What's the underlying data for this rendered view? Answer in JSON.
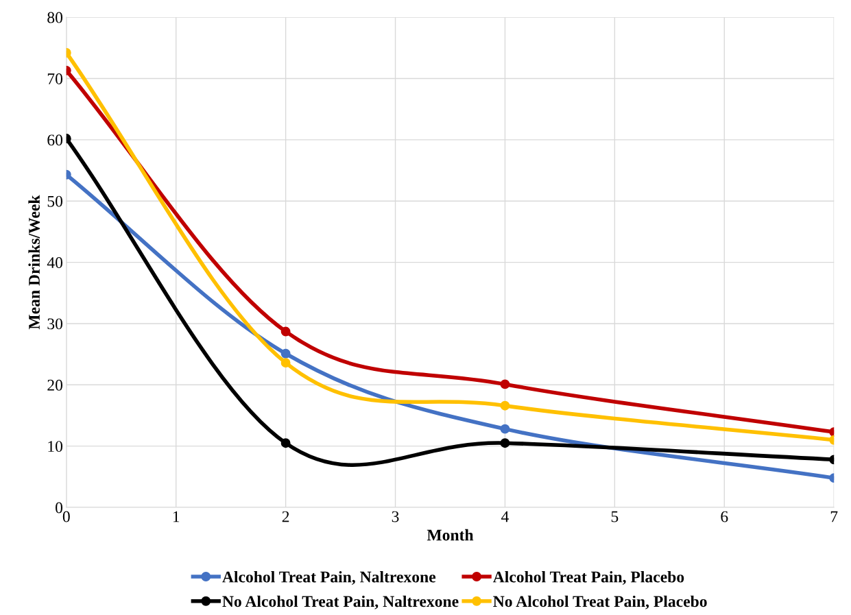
{
  "chart_data": {
    "type": "line",
    "xlabel": "Month",
    "ylabel": "Mean Drinks/Week",
    "x": [
      0,
      2,
      4,
      7
    ],
    "series": [
      {
        "name": "Alcohol Treat Pain, Naltrexone",
        "color": "#4472c4",
        "values": [
          54.3,
          25.1,
          12.8,
          4.8
        ]
      },
      {
        "name": "Alcohol Treat Pain, Placebo",
        "color": "#c00000",
        "values": [
          71.3,
          28.7,
          20.1,
          12.3
        ]
      },
      {
        "name": "No Alcohol Treat Pain, Naltrexone",
        "color": "#000000",
        "values": [
          60.2,
          10.5,
          10.5,
          7.8
        ]
      },
      {
        "name": "No Alcohol Treat Pain, Placebo",
        "color": "#ffc000",
        "values": [
          74.2,
          23.6,
          16.6,
          11.0
        ]
      }
    ],
    "xlim": [
      0,
      7
    ],
    "xticks": [
      0,
      1,
      2,
      3,
      4,
      5,
      6,
      7
    ],
    "ylim": [
      0,
      80
    ],
    "yticks": [
      0,
      10,
      20,
      30,
      40,
      50,
      60,
      70,
      80
    ],
    "grid": true,
    "legend": "bottom",
    "marker": "circle",
    "line_style": "solid"
  }
}
